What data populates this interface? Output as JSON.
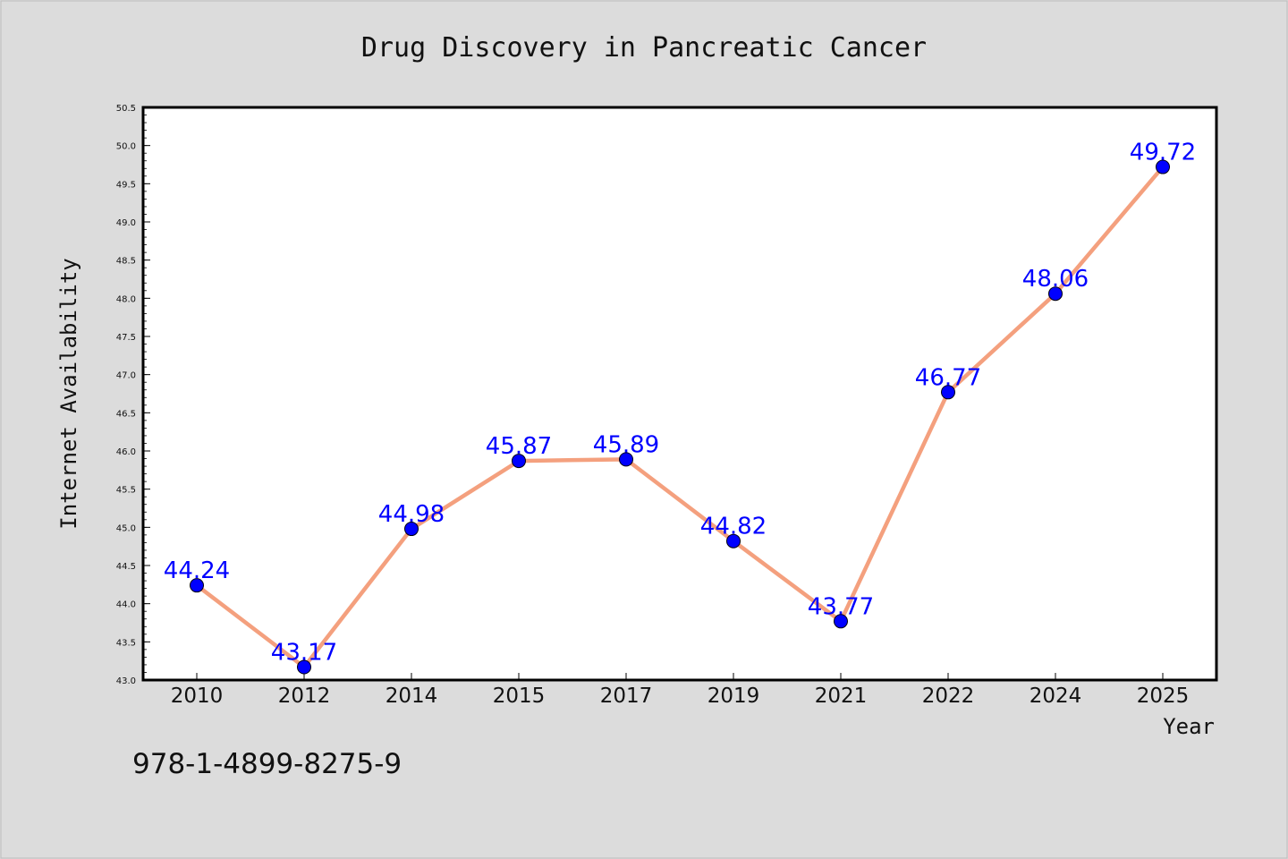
{
  "chart_data": {
    "type": "line",
    "title": "Drug Discovery in Pancreatic Cancer",
    "xlabel": "Year",
    "ylabel": "Internet Availability",
    "categories": [
      "2010",
      "2012",
      "2014",
      "2015",
      "2017",
      "2019",
      "2021",
      "2022",
      "2024",
      "2025"
    ],
    "series": [
      {
        "values": [
          44.24,
          43.17,
          44.98,
          45.87,
          45.89,
          44.82,
          43.77,
          46.77,
          48.06,
          49.72
        ],
        "data_labels": [
          "44.24",
          "43.17",
          "44.98",
          "45.87",
          "45.89",
          "44.82",
          "43.77",
          "46.77",
          "48.06",
          "49.72"
        ],
        "line_color": "#f4a07e",
        "marker_color": "#0000ff"
      }
    ],
    "ylim": [
      43.0,
      50.5
    ],
    "yticks": [
      "43.0",
      "43.5",
      "44.0",
      "44.5",
      "45.0",
      "45.5",
      "46.0",
      "46.5",
      "47.0",
      "47.5",
      "48.0",
      "48.5",
      "49.0",
      "49.5",
      "50.0",
      "50.5"
    ],
    "grid": false,
    "legend": "none",
    "plot_background": "#ffffff",
    "figure_background": "#dcdcdc",
    "annotation": "978-1-4899-8275-9"
  }
}
